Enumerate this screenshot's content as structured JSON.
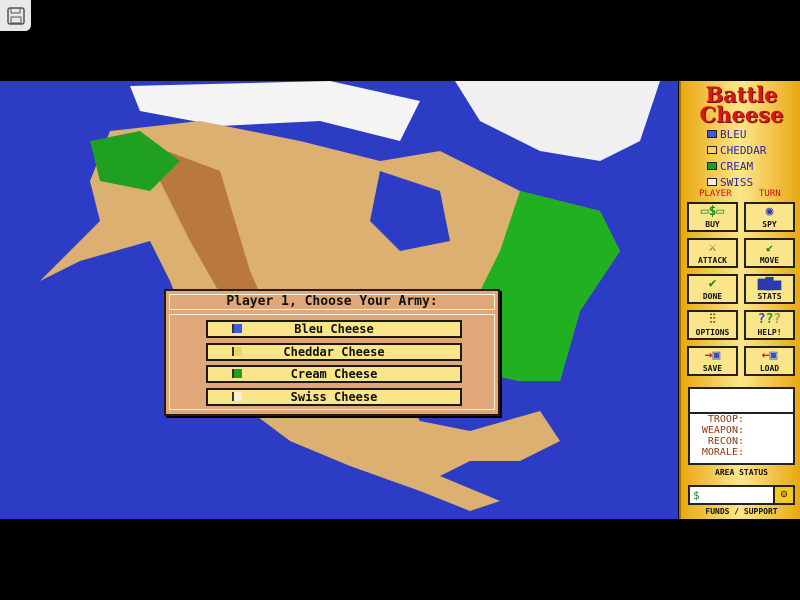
{
  "host": {
    "save_icon": "floppy-disk-icon",
    "expand_icon": "chevron-right-icon",
    "expand_glyph": "›"
  },
  "game": {
    "title_line1": "Battle",
    "title_line2": "Cheese",
    "players": [
      {
        "name": "BLEU",
        "color": "#3c5ce0"
      },
      {
        "name": "CHEDDAR",
        "color": "#f4d460"
      },
      {
        "name": "CREAM",
        "color": "#20a020"
      },
      {
        "name": "SWISS",
        "color": "#f8f0d8"
      }
    ],
    "player_label": "PLAYER",
    "turn_label": "TURN",
    "buttons": [
      {
        "label": "BUY",
        "icon": "money-icon"
      },
      {
        "label": "SPY",
        "icon": "eye-icon"
      },
      {
        "label": "ATTACK",
        "icon": "sword-icon"
      },
      {
        "label": "MOVE",
        "icon": "move-arrow-icon"
      },
      {
        "label": "DONE",
        "icon": "checkmark-icon"
      },
      {
        "label": "STATS",
        "icon": "bar-chart-icon"
      },
      {
        "label": "OPTIONS",
        "icon": "sliders-icon"
      },
      {
        "label": "HELP!",
        "icon": "question-marks-icon"
      },
      {
        "label": "SAVE",
        "icon": "save-disk-icon"
      },
      {
        "label": "LOAD",
        "icon": "load-disk-icon"
      }
    ],
    "status": {
      "troop": "TROOP:",
      "weapon": "WEAPON:",
      "recon": "RECON:",
      "morale": "MORALE:",
      "caption": "AREA STATUS"
    },
    "funds": {
      "symbol": "$",
      "caption": "FUNDS / SUPPORT",
      "support_icon": "neutral-face-icon"
    },
    "dialog": {
      "title": "Player 1, Choose Your Army:",
      "options": [
        {
          "label": "Bleu Cheese",
          "color": "#3c5ce0"
        },
        {
          "label": "Cheddar Cheese",
          "color": "#f4d460"
        },
        {
          "label": "Cream Cheese",
          "color": "#20a020"
        },
        {
          "label": "Swiss Cheese",
          "color": "#f8f0d8"
        }
      ]
    }
  }
}
